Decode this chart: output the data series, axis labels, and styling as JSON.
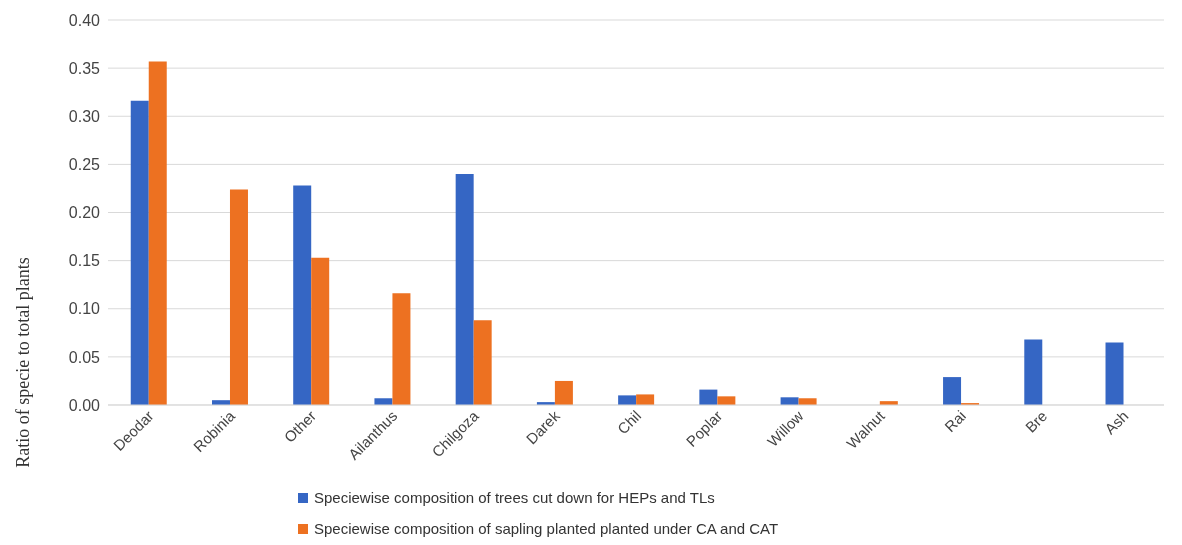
{
  "chart_data": {
    "type": "bar",
    "ylabel": "Ratio of specie to total plants",
    "categories": [
      "Deodar",
      "Robinia",
      "Other",
      "Ailanthus",
      "Chilgoza",
      "Darek",
      "Chil",
      "Poplar",
      "Willow",
      "Walnut",
      "Rai",
      "Bre",
      "Ash"
    ],
    "series": [
      {
        "name": "Speciewise composition of trees cut down for HEPs and TLs",
        "color": "#3566c4",
        "values": [
          0.316,
          0.005,
          0.228,
          0.007,
          0.24,
          0.003,
          0.01,
          0.016,
          0.008,
          null,
          0.029,
          0.068,
          0.065
        ]
      },
      {
        "name": "Speciewise composition of sapling planted planted under CA and CAT",
        "color": "#ed7121",
        "values": [
          0.357,
          0.224,
          0.153,
          0.116,
          0.088,
          0.025,
          0.011,
          0.009,
          0.007,
          0.004,
          0.002,
          null,
          null
        ]
      }
    ],
    "ylim": [
      0,
      0.4
    ],
    "yticks": [
      {
        "value": 0,
        "label": "0.00"
      },
      {
        "value": 0.05,
        "label": "0.05"
      },
      {
        "value": 0.1,
        "label": "0.10"
      },
      {
        "value": 0.15,
        "label": "0.15"
      },
      {
        "value": 0.2,
        "label": "0.20"
      },
      {
        "value": 0.25,
        "label": "0.25"
      },
      {
        "value": 0.3,
        "label": "0.30"
      },
      {
        "value": 0.35,
        "label": "0.35"
      },
      {
        "value": 0.4,
        "label": "0.40"
      }
    ],
    "grid": "y",
    "legend": "bottom"
  }
}
